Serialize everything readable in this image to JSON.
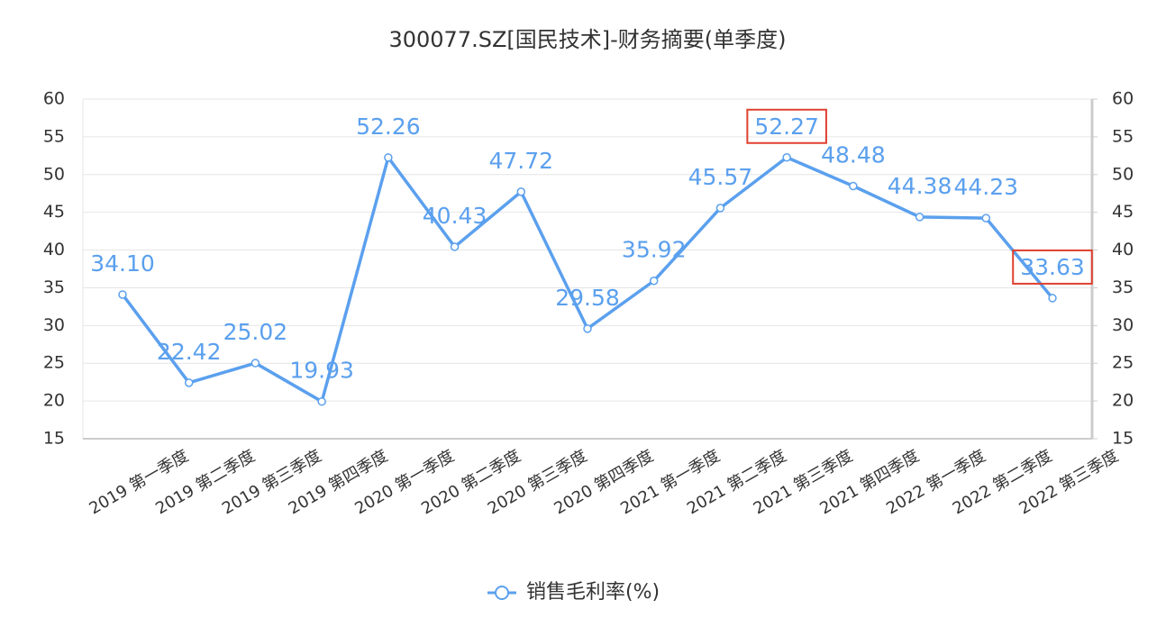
{
  "chart_data": {
    "type": "line",
    "title": "300077.SZ[国民技术]-财务摘要(单季度)",
    "categories": [
      "2019 第一季度",
      "2019 第二季度",
      "2019 第三季度",
      "2019 第四季度",
      "2020 第一季度",
      "2020 第二季度",
      "2020 第三季度",
      "2020 第四季度",
      "2021 第一季度",
      "2021 第二季度",
      "2021 第三季度",
      "2021 第四季度",
      "2022 第一季度",
      "2022 第二季度",
      "2022 第三季度"
    ],
    "series": [
      {
        "name": "销售毛利率(%)",
        "color": "#5ba0ee",
        "values": [
          34.1,
          22.42,
          25.02,
          19.93,
          52.26,
          40.43,
          47.72,
          29.58,
          35.92,
          45.57,
          52.27,
          48.48,
          44.38,
          44.23,
          33.63
        ],
        "value_labels": [
          "34.10",
          "22.42",
          "25.02",
          "19.93",
          "52.26",
          "40.43",
          "47.72",
          "29.58",
          "35.92",
          "45.57",
          "52.27",
          "48.48",
          "44.38",
          "44.23",
          "33.63"
        ]
      }
    ],
    "highlighted": [
      10,
      14
    ],
    "highlight_color": "#e0402f",
    "ylim": [
      15,
      60
    ],
    "yticks": [
      15,
      20,
      25,
      30,
      35,
      40,
      45,
      50,
      55,
      60
    ],
    "y2lim": [
      15,
      60
    ],
    "y2ticks": [
      15,
      20,
      25,
      30,
      35,
      40,
      45,
      50,
      55,
      60
    ],
    "grid": true
  }
}
